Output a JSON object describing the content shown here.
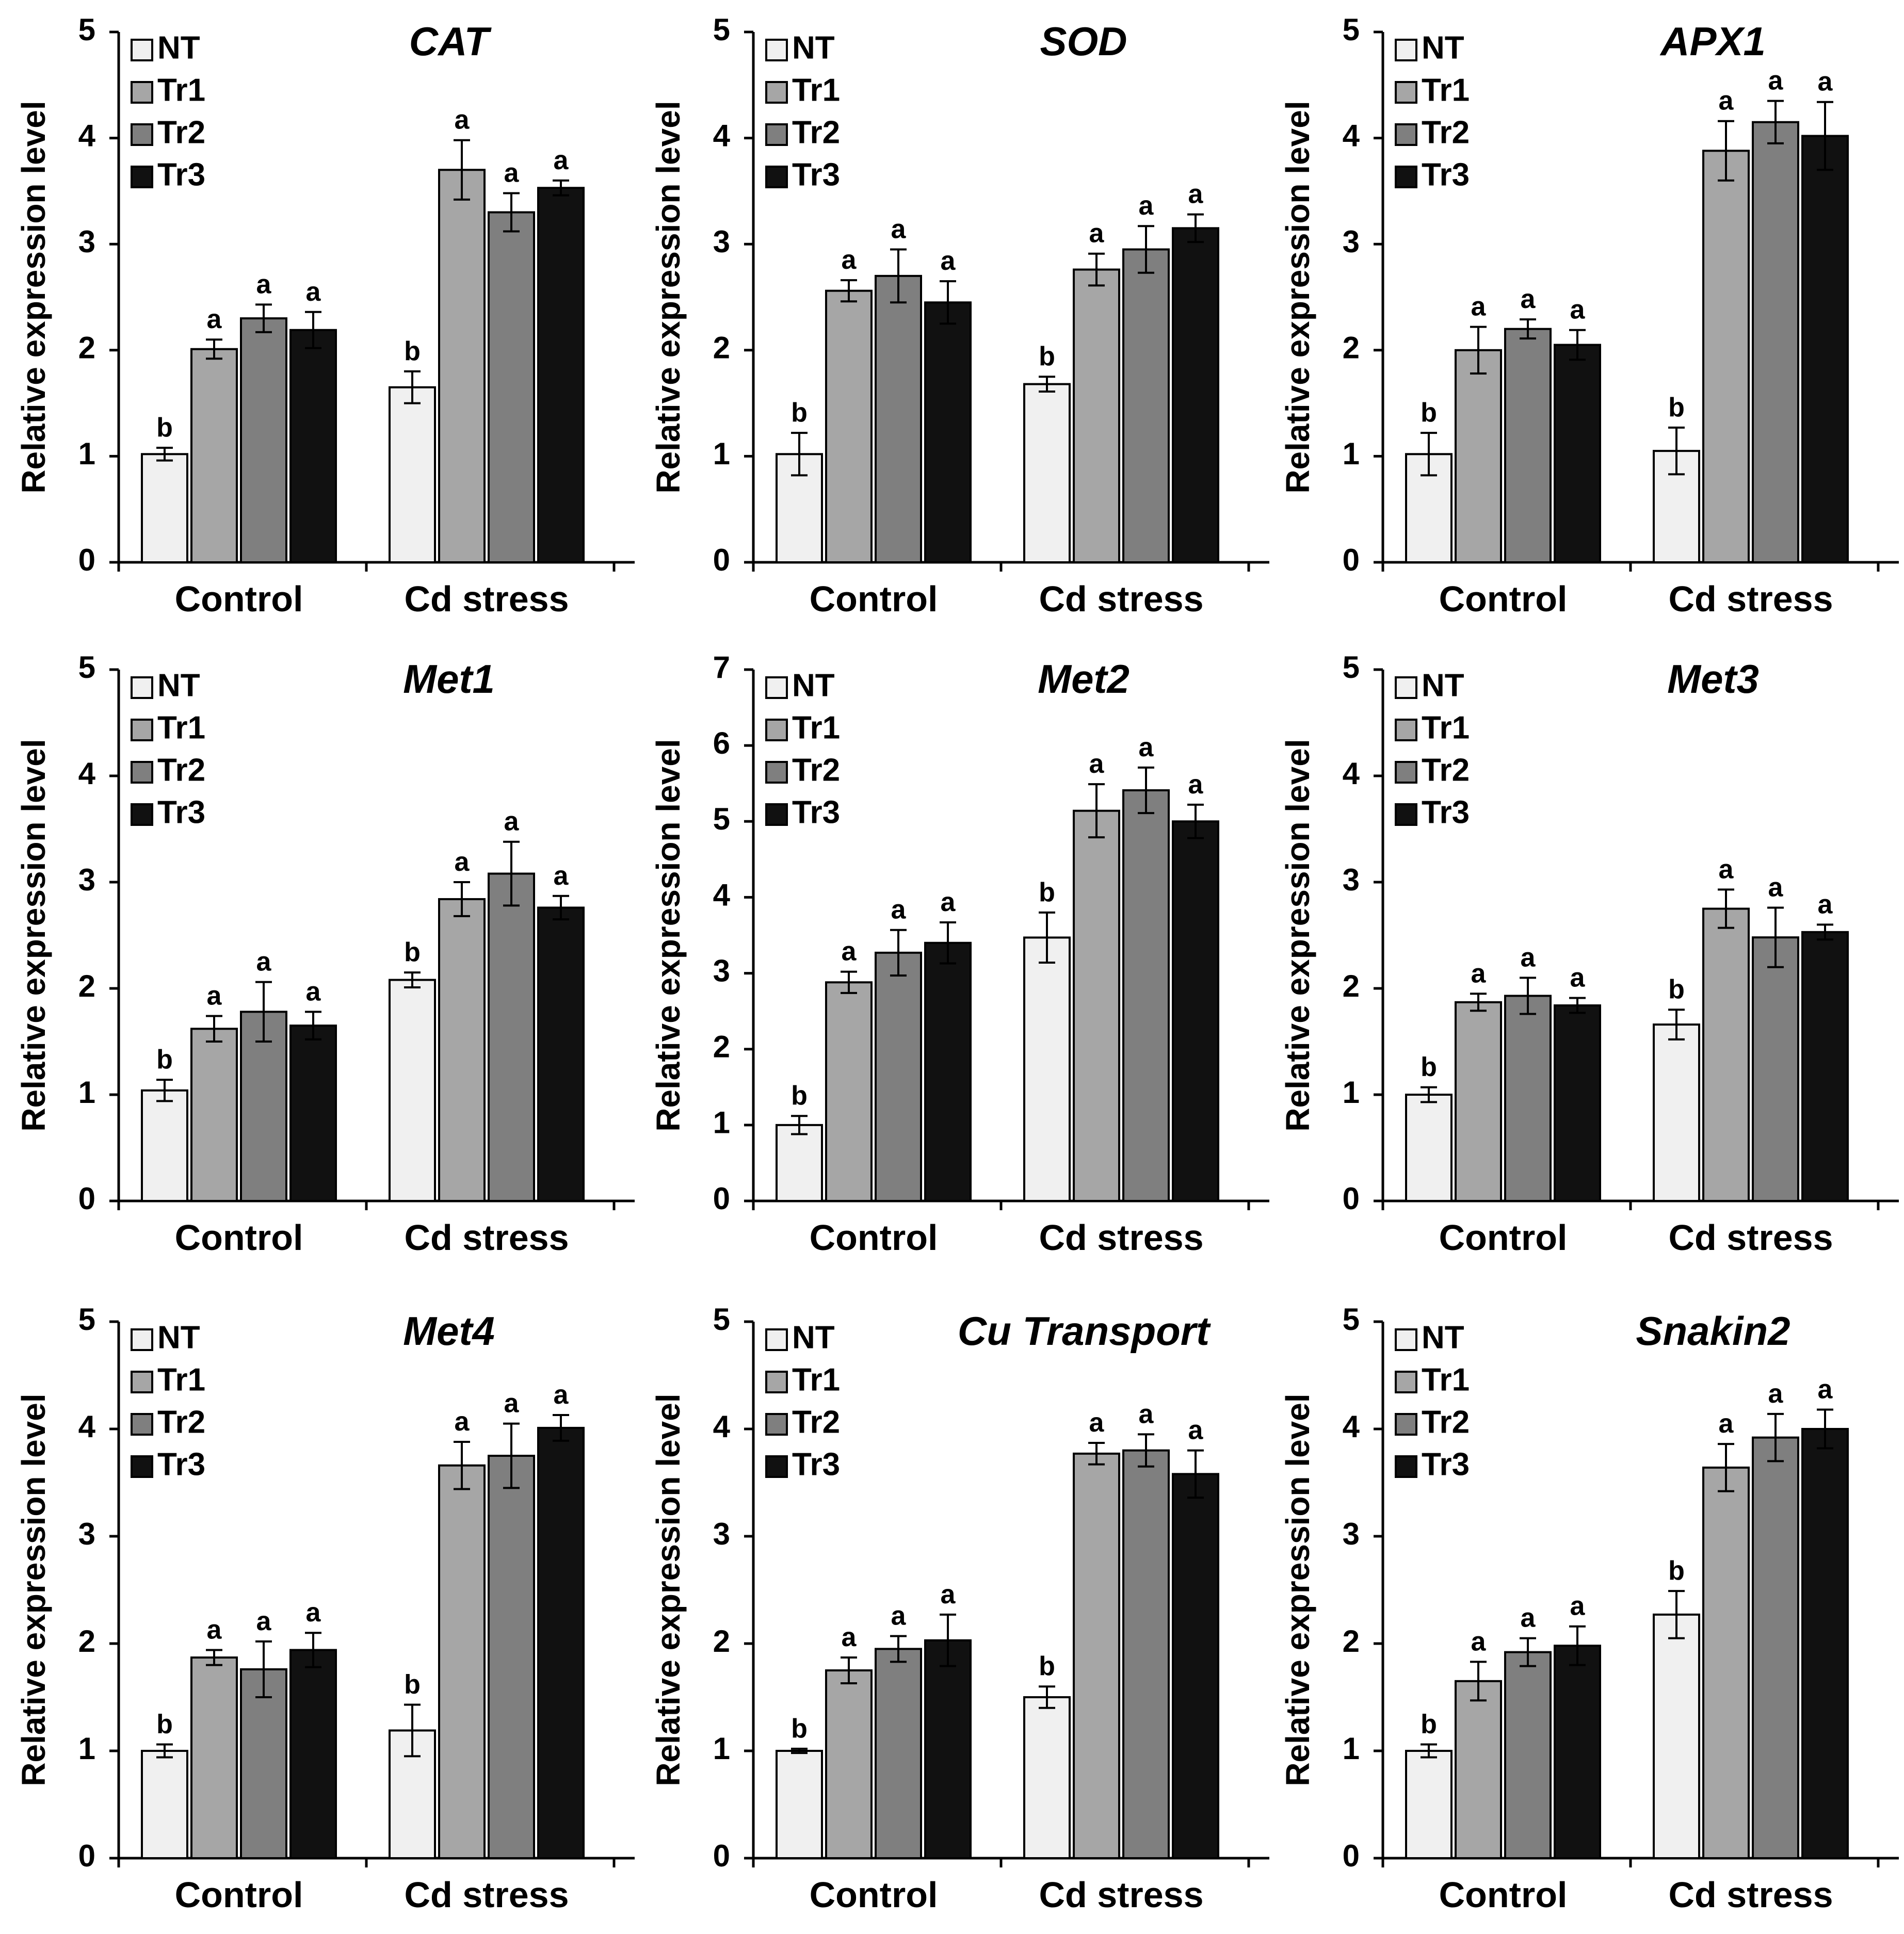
{
  "shared": {
    "ylabel": "Relative expression level",
    "groups": [
      "Control",
      "Cd stress"
    ],
    "legend": [
      "NT",
      "Tr1",
      "Tr2",
      "Tr3"
    ],
    "series_colors": [
      "#f0f0f0",
      "#a6a6a6",
      "#7f7f7f",
      "#111111"
    ]
  },
  "chart_data": [
    {
      "type": "bar",
      "title": "CAT",
      "ylabel": "Relative expression level",
      "ylim": [
        0,
        5
      ],
      "yticks": [
        0,
        1,
        2,
        3,
        4,
        5
      ],
      "categories": [
        "Control",
        "Cd stress"
      ],
      "series": [
        {
          "name": "NT",
          "values": [
            1.02,
            1.65
          ],
          "errors": [
            0.06,
            0.15
          ],
          "letters": [
            "b",
            "b"
          ]
        },
        {
          "name": "Tr1",
          "values": [
            2.01,
            3.7
          ],
          "errors": [
            0.09,
            0.28
          ],
          "letters": [
            "a",
            "a"
          ]
        },
        {
          "name": "Tr2",
          "values": [
            2.3,
            3.3
          ],
          "errors": [
            0.13,
            0.18
          ],
          "letters": [
            "a",
            "a"
          ]
        },
        {
          "name": "Tr3",
          "values": [
            2.19,
            3.53
          ],
          "errors": [
            0.17,
            0.07
          ],
          "letters": [
            "a",
            "a"
          ]
        }
      ]
    },
    {
      "type": "bar",
      "title": "SOD",
      "ylabel": "Relative expression level",
      "ylim": [
        0,
        5
      ],
      "yticks": [
        0,
        1,
        2,
        3,
        4,
        5
      ],
      "categories": [
        "Control",
        "Cd stress"
      ],
      "series": [
        {
          "name": "NT",
          "values": [
            1.02,
            1.68
          ],
          "errors": [
            0.2,
            0.07
          ],
          "letters": [
            "b",
            "b"
          ]
        },
        {
          "name": "Tr1",
          "values": [
            2.56,
            2.76
          ],
          "errors": [
            0.1,
            0.15
          ],
          "letters": [
            "a",
            "a"
          ]
        },
        {
          "name": "Tr2",
          "values": [
            2.7,
            2.95
          ],
          "errors": [
            0.25,
            0.22
          ],
          "letters": [
            "a",
            "a"
          ]
        },
        {
          "name": "Tr3",
          "values": [
            2.45,
            3.15
          ],
          "errors": [
            0.2,
            0.13
          ],
          "letters": [
            "a",
            "a"
          ]
        }
      ]
    },
    {
      "type": "bar",
      "title": "APX1",
      "ylabel": "Relative expression level",
      "ylim": [
        0,
        5
      ],
      "yticks": [
        0,
        1,
        2,
        3,
        4,
        5
      ],
      "categories": [
        "Control",
        "Cd stress"
      ],
      "series": [
        {
          "name": "NT",
          "values": [
            1.02,
            1.05
          ],
          "errors": [
            0.2,
            0.22
          ],
          "letters": [
            "b",
            "b"
          ]
        },
        {
          "name": "Tr1",
          "values": [
            2.0,
            3.88
          ],
          "errors": [
            0.22,
            0.28
          ],
          "letters": [
            "a",
            "a"
          ]
        },
        {
          "name": "Tr2",
          "values": [
            2.2,
            4.15
          ],
          "errors": [
            0.09,
            0.2
          ],
          "letters": [
            "a",
            "a"
          ]
        },
        {
          "name": "Tr3",
          "values": [
            2.05,
            4.02
          ],
          "errors": [
            0.14,
            0.32
          ],
          "letters": [
            "a",
            "a"
          ]
        }
      ]
    },
    {
      "type": "bar",
      "title": "Met1",
      "ylabel": "Relative expression level",
      "ylim": [
        0,
        5
      ],
      "yticks": [
        0,
        1,
        2,
        3,
        4,
        5
      ],
      "categories": [
        "Control",
        "Cd stress"
      ],
      "series": [
        {
          "name": "NT",
          "values": [
            1.04,
            2.08
          ],
          "errors": [
            0.1,
            0.07
          ],
          "letters": [
            "b",
            "b"
          ]
        },
        {
          "name": "Tr1",
          "values": [
            1.62,
            2.84
          ],
          "errors": [
            0.12,
            0.16
          ],
          "letters": [
            "a",
            "a"
          ]
        },
        {
          "name": "Tr2",
          "values": [
            1.78,
            3.08
          ],
          "errors": [
            0.28,
            0.3
          ],
          "letters": [
            "a",
            "a"
          ]
        },
        {
          "name": "Tr3",
          "values": [
            1.65,
            2.76
          ],
          "errors": [
            0.13,
            0.11
          ],
          "letters": [
            "a",
            "a"
          ]
        }
      ]
    },
    {
      "type": "bar",
      "title": "Met2",
      "ylabel": "Relative expression level",
      "ylim": [
        0,
        7
      ],
      "yticks": [
        0,
        1,
        2,
        3,
        4,
        5,
        6,
        7
      ],
      "categories": [
        "Control",
        "Cd stress"
      ],
      "series": [
        {
          "name": "NT",
          "values": [
            1.0,
            3.47
          ],
          "errors": [
            0.12,
            0.33
          ],
          "letters": [
            "b",
            "b"
          ]
        },
        {
          "name": "Tr1",
          "values": [
            2.88,
            5.14
          ],
          "errors": [
            0.14,
            0.35
          ],
          "letters": [
            "a",
            "a"
          ]
        },
        {
          "name": "Tr2",
          "values": [
            3.27,
            5.41
          ],
          "errors": [
            0.3,
            0.3
          ],
          "letters": [
            "a",
            "a"
          ]
        },
        {
          "name": "Tr3",
          "values": [
            3.4,
            5.0
          ],
          "errors": [
            0.27,
            0.22
          ],
          "letters": [
            "a",
            "a"
          ]
        }
      ]
    },
    {
      "type": "bar",
      "title": "Met3",
      "ylabel": "Relative expression level",
      "ylim": [
        0,
        5
      ],
      "yticks": [
        0,
        1,
        2,
        3,
        4,
        5
      ],
      "categories": [
        "Control",
        "Cd stress"
      ],
      "series": [
        {
          "name": "NT",
          "values": [
            1.0,
            1.66
          ],
          "errors": [
            0.07,
            0.14
          ],
          "letters": [
            "b",
            "b"
          ]
        },
        {
          "name": "Tr1",
          "values": [
            1.87,
            2.75
          ],
          "errors": [
            0.08,
            0.18
          ],
          "letters": [
            "a",
            "a"
          ]
        },
        {
          "name": "Tr2",
          "values": [
            1.93,
            2.48
          ],
          "errors": [
            0.17,
            0.28
          ],
          "letters": [
            "a",
            "a"
          ]
        },
        {
          "name": "Tr3",
          "values": [
            1.84,
            2.53
          ],
          "errors": [
            0.07,
            0.07
          ],
          "letters": [
            "a",
            "a"
          ]
        }
      ]
    },
    {
      "type": "bar",
      "title": "Met4",
      "ylabel": "Relative expression level",
      "ylim": [
        0,
        5
      ],
      "yticks": [
        0,
        1,
        2,
        3,
        4,
        5
      ],
      "categories": [
        "Control",
        "Cd stress"
      ],
      "series": [
        {
          "name": "NT",
          "values": [
            1.0,
            1.19
          ],
          "errors": [
            0.06,
            0.24
          ],
          "letters": [
            "b",
            "b"
          ]
        },
        {
          "name": "Tr1",
          "values": [
            1.87,
            3.66
          ],
          "errors": [
            0.07,
            0.22
          ],
          "letters": [
            "a",
            "a"
          ]
        },
        {
          "name": "Tr2",
          "values": [
            1.76,
            3.75
          ],
          "errors": [
            0.26,
            0.3
          ],
          "letters": [
            "a",
            "a"
          ]
        },
        {
          "name": "Tr3",
          "values": [
            1.94,
            4.01
          ],
          "errors": [
            0.16,
            0.12
          ],
          "letters": [
            "a",
            "a"
          ]
        }
      ]
    },
    {
      "type": "bar",
      "title": "Cu Transport",
      "ylabel": "Relative expression level",
      "ylim": [
        0,
        5
      ],
      "yticks": [
        0,
        1,
        2,
        3,
        4,
        5
      ],
      "categories": [
        "Control",
        "Cd stress"
      ],
      "series": [
        {
          "name": "NT",
          "values": [
            1.0,
            1.5
          ],
          "errors": [
            0.02,
            0.1
          ],
          "letters": [
            "b",
            "b"
          ]
        },
        {
          "name": "Tr1",
          "values": [
            1.75,
            3.77
          ],
          "errors": [
            0.12,
            0.1
          ],
          "letters": [
            "a",
            "a"
          ]
        },
        {
          "name": "Tr2",
          "values": [
            1.95,
            3.8
          ],
          "errors": [
            0.12,
            0.15
          ],
          "letters": [
            "a",
            "a"
          ]
        },
        {
          "name": "Tr3",
          "values": [
            2.03,
            3.58
          ],
          "errors": [
            0.24,
            0.22
          ],
          "letters": [
            "a",
            "a"
          ]
        }
      ]
    },
    {
      "type": "bar",
      "title": "Snakin2",
      "ylabel": "Relative expression level",
      "ylim": [
        0,
        5
      ],
      "yticks": [
        0,
        1,
        2,
        3,
        4,
        5
      ],
      "categories": [
        "Control",
        "Cd stress"
      ],
      "series": [
        {
          "name": "NT",
          "values": [
            1.0,
            2.27
          ],
          "errors": [
            0.06,
            0.22
          ],
          "letters": [
            "b",
            "b"
          ]
        },
        {
          "name": "Tr1",
          "values": [
            1.65,
            3.64
          ],
          "errors": [
            0.18,
            0.22
          ],
          "letters": [
            "a",
            "a"
          ]
        },
        {
          "name": "Tr2",
          "values": [
            1.92,
            3.92
          ],
          "errors": [
            0.13,
            0.22
          ],
          "letters": [
            "a",
            "a"
          ]
        },
        {
          "name": "Tr3",
          "values": [
            1.98,
            4.0
          ],
          "errors": [
            0.18,
            0.18
          ],
          "letters": [
            "a",
            "a"
          ]
        }
      ]
    }
  ]
}
